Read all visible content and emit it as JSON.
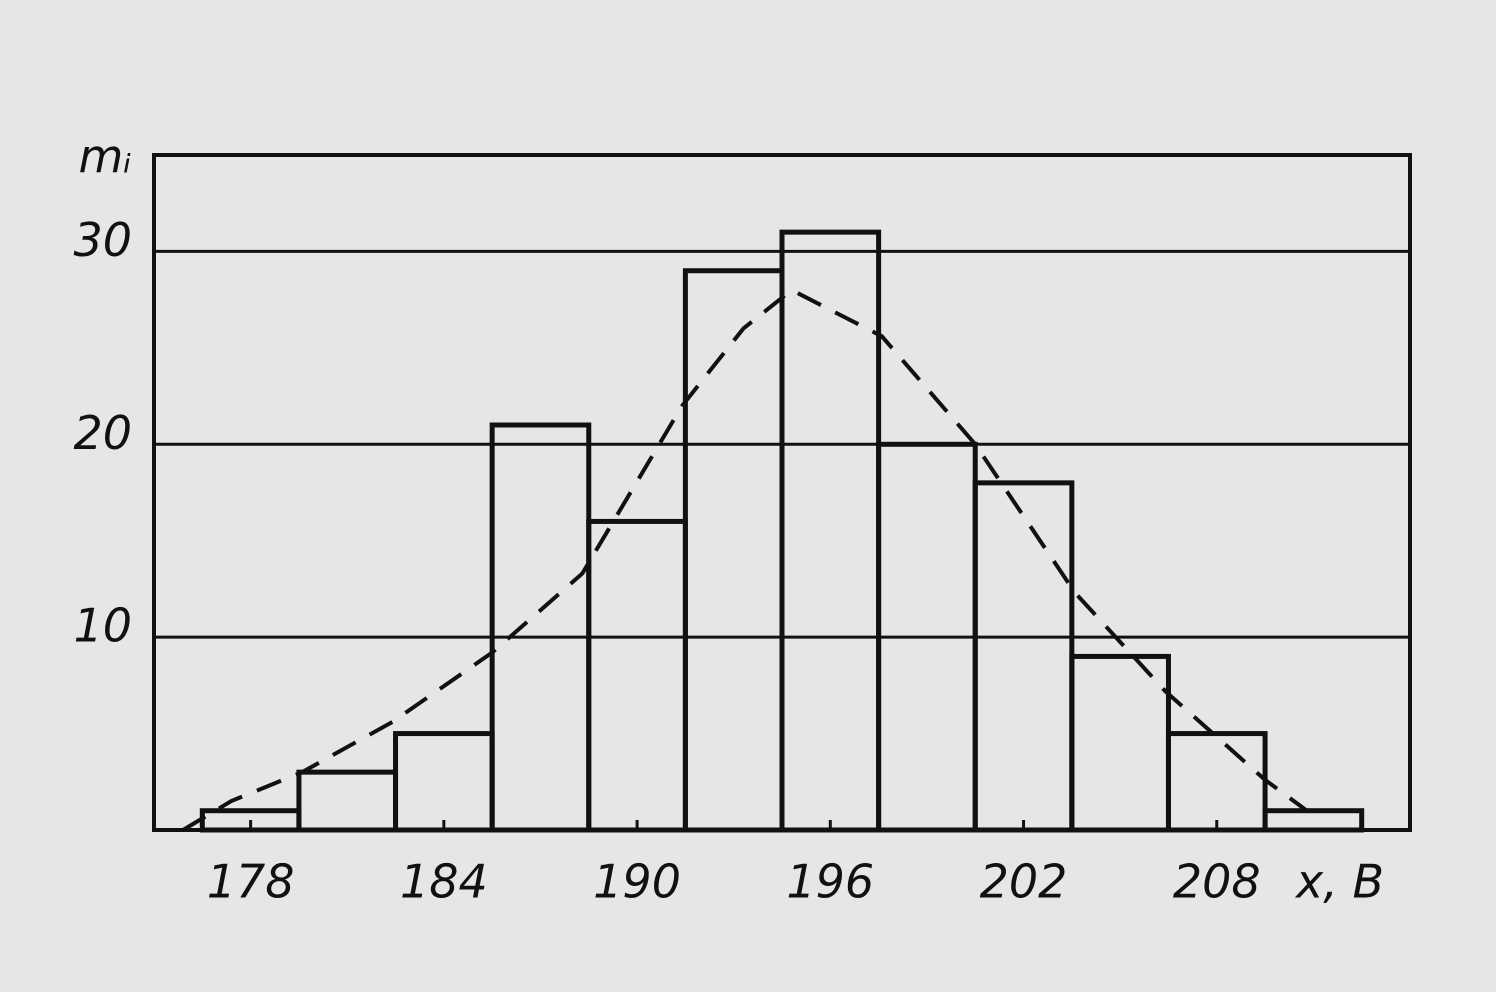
{
  "chart_data": {
    "type": "histogram",
    "y_label": "mᵢ",
    "x_label": "x, В",
    "bins": [
      176.5,
      179.5,
      182.5,
      185.5,
      188.5,
      191.5,
      194.5,
      197.5,
      200.5,
      203.5,
      206.5,
      209.5,
      212.5
    ],
    "values": [
      1,
      3,
      5,
      21,
      16,
      29,
      31,
      20,
      18,
      9,
      5,
      1
    ],
    "color": "#111111",
    "curve": {
      "x": [
        175.9,
        177.4,
        179.6,
        182.4,
        185.5,
        188.3,
        191.4,
        193.3,
        194.8,
        197.6,
        200.5,
        203.6,
        206.4,
        209.5,
        210.8
      ],
      "values": [
        0,
        1.5,
        3,
        5.6,
        9.2,
        13.3,
        22,
        26,
        28,
        25.6,
        20,
        12.3,
        7.2,
        2.6,
        1
      ],
      "dashed": true
    },
    "xlim": [
      175,
      214
    ],
    "ylim": [
      0,
      35
    ],
    "xticks": [
      178,
      184,
      190,
      196,
      202,
      208
    ],
    "yticks": [
      10,
      20,
      30
    ],
    "grid": true
  }
}
